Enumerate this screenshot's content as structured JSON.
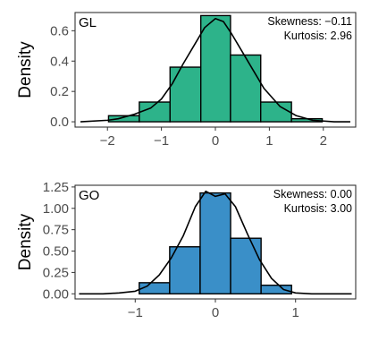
{
  "chart_data": [
    {
      "type": "bar",
      "panel_label": "GL",
      "ylabel": "Density",
      "xlabel": "",
      "bar_color": "#2db38a",
      "xlim": [
        -2.6,
        2.6
      ],
      "ylim": [
        -0.035,
        0.72
      ],
      "xticks": [
        -2,
        -1,
        0,
        1,
        2
      ],
      "xtick_labels": [
        "−2",
        "−1",
        "0",
        "1",
        "2"
      ],
      "yticks": [
        0.0,
        0.2,
        0.4,
        0.6
      ],
      "ytick_labels": [
        "0.0",
        "0.2",
        "0.4",
        "0.6"
      ],
      "bins": [
        {
          "x0": -1.98,
          "x1": -1.41,
          "density": 0.04
        },
        {
          "x0": -1.41,
          "x1": -0.84,
          "density": 0.13
        },
        {
          "x0": -0.84,
          "x1": -0.27,
          "density": 0.36
        },
        {
          "x0": -0.27,
          "x1": 0.28,
          "density": 0.7
        },
        {
          "x0": 0.28,
          "x1": 0.84,
          "density": 0.44
        },
        {
          "x0": 0.84,
          "x1": 1.41,
          "density": 0.13
        },
        {
          "x0": 1.41,
          "x1": 1.98,
          "density": 0.02
        }
      ],
      "density_curve": {
        "x": [
          -2.5,
          -2.0,
          -1.8,
          -1.5,
          -1.2,
          -1.0,
          -0.8,
          -0.6,
          -0.4,
          -0.2,
          0.0,
          0.15,
          0.3,
          0.5,
          0.7,
          0.9,
          1.2,
          1.5,
          1.8,
          2.2,
          2.5
        ],
        "y": [
          0.0,
          0.01,
          0.02,
          0.05,
          0.09,
          0.15,
          0.25,
          0.38,
          0.5,
          0.62,
          0.68,
          0.66,
          0.58,
          0.46,
          0.34,
          0.22,
          0.1,
          0.04,
          0.01,
          0.0,
          0.0
        ]
      },
      "stats": {
        "skewness": "Skewness: −0.11",
        "kurtosis": "Kurtosis: 2.96"
      }
    },
    {
      "type": "bar",
      "panel_label": "GO",
      "ylabel": "Density",
      "xlabel": "",
      "bar_color": "#3a8fc8",
      "xlim": [
        -1.75,
        1.75
      ],
      "ylim": [
        -0.06,
        1.27
      ],
      "xticks": [
        -1,
        0,
        1
      ],
      "xtick_labels": [
        "−1",
        "0",
        "1"
      ],
      "yticks": [
        0.0,
        0.25,
        0.5,
        0.75,
        1.0,
        1.25
      ],
      "ytick_labels": [
        "0.00",
        "0.25",
        "0.50",
        "0.75",
        "1.00",
        "1.25"
      ],
      "bins": [
        {
          "x0": -0.95,
          "x1": -0.57,
          "density": 0.13
        },
        {
          "x0": -0.57,
          "x1": -0.19,
          "density": 0.55
        },
        {
          "x0": -0.19,
          "x1": 0.19,
          "density": 1.18
        },
        {
          "x0": 0.19,
          "x1": 0.57,
          "density": 0.65
        },
        {
          "x0": 0.57,
          "x1": 0.95,
          "density": 0.1
        }
      ],
      "density_curve": {
        "x": [
          -1.7,
          -1.4,
          -1.2,
          -1.0,
          -0.85,
          -0.7,
          -0.55,
          -0.4,
          -0.25,
          -0.12,
          0.0,
          0.12,
          0.25,
          0.4,
          0.55,
          0.7,
          0.85,
          1.0,
          1.2,
          1.7
        ],
        "y": [
          0.0,
          0.0,
          0.01,
          0.03,
          0.09,
          0.22,
          0.42,
          0.68,
          1.02,
          1.2,
          1.14,
          1.17,
          1.02,
          0.7,
          0.4,
          0.18,
          0.05,
          0.01,
          0.0,
          0.0
        ]
      },
      "stats": {
        "skewness": "Skewness: 0.00",
        "kurtosis": "Kurtosis: 3.00"
      }
    }
  ]
}
